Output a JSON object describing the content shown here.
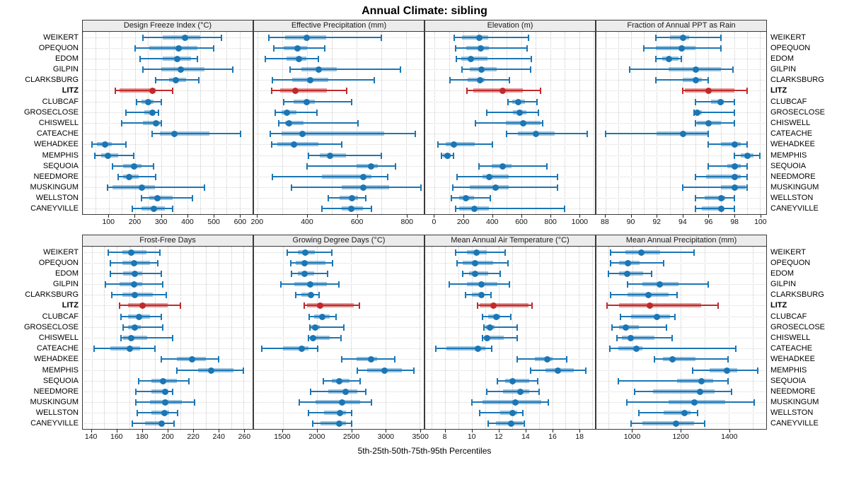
{
  "title": "Annual Climate: sibling",
  "footer": "5th-25th-50th-75th-95th Percentiles",
  "highlight_site": "LITZ",
  "colors": {
    "series_blue": "#1b76b5",
    "series_blue_box": "rgba(31,119,180,0.45)",
    "highlight_red": "#c22a2a",
    "highlight_red_box": "rgba(194,42,42,0.5)",
    "header_bg": "#ececec",
    "grid": "#c9c9c9"
  },
  "chart_data": {
    "type": "percentile-dotplot",
    "note": "Each row shows 5th-25th-50th-75th-95th percentiles (whisker = 5-95, thick bar = 25-75, dot = median)",
    "sites": [
      "WEIKERT",
      "OPEQUON",
      "EDOM",
      "GILPIN",
      "CLARKSBURG",
      "LITZ",
      "CLUBCAF",
      "GROSECLOSE",
      "CHISWELL",
      "CATEACHE",
      "WEHADKEE",
      "MEMPHIS",
      "SEQUOIA",
      "NEEDMORE",
      "MUSKINGUM",
      "WELLSTON",
      "CANEYVILLE"
    ],
    "panels": [
      {
        "title": "Design Freeze Index (°C)",
        "min": 0,
        "max": 650,
        "ticks": [
          100,
          200,
          300,
          400,
          500,
          600
        ],
        "minor_step": 50,
        "values": [
          [
            230,
            305,
            390,
            450,
            530
          ],
          [
            200,
            255,
            365,
            440,
            500
          ],
          [
            220,
            305,
            360,
            415,
            440
          ],
          [
            230,
            300,
            375,
            465,
            575
          ],
          [
            280,
            330,
            355,
            395,
            445
          ],
          [
            125,
            140,
            265,
            280,
            345
          ],
          [
            205,
            225,
            250,
            270,
            300
          ],
          [
            165,
            235,
            265,
            275,
            290
          ],
          [
            150,
            230,
            280,
            295,
            300
          ],
          [
            265,
            295,
            350,
            485,
            605
          ],
          [
            35,
            55,
            85,
            110,
            165
          ],
          [
            45,
            70,
            95,
            135,
            195
          ],
          [
            115,
            155,
            195,
            225,
            270
          ],
          [
            135,
            155,
            175,
            215,
            280
          ],
          [
            95,
            115,
            225,
            275,
            465
          ],
          [
            225,
            255,
            285,
            345,
            420
          ],
          [
            190,
            225,
            270,
            315,
            345
          ]
        ]
      },
      {
        "title": "Effective Precipitation (mm)",
        "min": 185,
        "max": 870,
        "ticks": [
          200,
          400,
          600,
          800
        ],
        "minor_step": 100,
        "values": [
          [
            245,
            310,
            395,
            475,
            700
          ],
          [
            265,
            305,
            360,
            400,
            470
          ],
          [
            230,
            315,
            365,
            395,
            445
          ],
          [
            330,
            375,
            445,
            520,
            775
          ],
          [
            260,
            340,
            410,
            485,
            670
          ],
          [
            255,
            290,
            350,
            480,
            560
          ],
          [
            305,
            345,
            395,
            430,
            580
          ],
          [
            270,
            295,
            315,
            355,
            440
          ],
          [
            285,
            310,
            325,
            385,
            605
          ],
          [
            250,
            295,
            380,
            710,
            835
          ],
          [
            255,
            280,
            345,
            445,
            540
          ],
          [
            405,
            450,
            490,
            555,
            700
          ],
          [
            400,
            600,
            655,
            685,
            755
          ],
          [
            260,
            460,
            625,
            660,
            725
          ],
          [
            335,
            540,
            625,
            730,
            860
          ],
          [
            485,
            530,
            580,
            605,
            635
          ],
          [
            460,
            540,
            575,
            625,
            660
          ]
        ]
      },
      {
        "title": "Elevation (m)",
        "min": -65,
        "max": 1110,
        "ticks": [
          0,
          200,
          400,
          600,
          800,
          1000
        ],
        "minor_step": 100,
        "values": [
          [
            135,
            190,
            305,
            370,
            650
          ],
          [
            145,
            220,
            315,
            375,
            640
          ],
          [
            150,
            185,
            250,
            365,
            670
          ],
          [
            190,
            245,
            320,
            430,
            665
          ],
          [
            105,
            230,
            310,
            345,
            520
          ],
          [
            225,
            270,
            470,
            610,
            735
          ],
          [
            510,
            535,
            575,
            625,
            710
          ],
          [
            360,
            540,
            585,
            635,
            720
          ],
          [
            285,
            495,
            610,
            735,
            750
          ],
          [
            500,
            575,
            700,
            830,
            1055
          ],
          [
            25,
            75,
            130,
            280,
            400
          ],
          [
            50,
            55,
            85,
            110,
            130
          ],
          [
            305,
            395,
            470,
            530,
            775
          ],
          [
            155,
            330,
            375,
            515,
            850
          ],
          [
            125,
            245,
            420,
            515,
            850
          ],
          [
            115,
            170,
            215,
            275,
            385
          ],
          [
            145,
            170,
            275,
            375,
            900
          ]
        ]
      },
      {
        "title": "Fraction of Annual PPT as Rain",
        "min": 87.3,
        "max": 100.5,
        "ticks": [
          88,
          90,
          92,
          94,
          96,
          98,
          100
        ],
        "minor_step": 1,
        "values": [
          [
            91.9,
            93,
            94,
            94.5,
            97
          ],
          [
            91,
            91.9,
            93.9,
            95,
            97
          ],
          [
            91.9,
            92.4,
            92.9,
            93.7,
            93.9
          ],
          [
            89.9,
            92.9,
            95,
            97,
            97.9
          ],
          [
            91.9,
            94,
            95,
            95.5,
            96
          ],
          [
            94,
            94.2,
            96,
            98,
            99
          ],
          [
            95,
            96.2,
            96.9,
            97.2,
            98
          ],
          [
            94.9,
            95,
            95.1,
            95.5,
            98
          ],
          [
            95,
            95.1,
            96,
            97,
            98
          ],
          [
            88,
            92,
            94,
            96,
            96
          ],
          [
            96,
            97,
            98,
            98.5,
            99
          ],
          [
            98,
            98.5,
            99,
            99.5,
            100
          ],
          [
            96,
            97.5,
            98,
            98.5,
            99
          ],
          [
            95,
            95.8,
            98,
            98.5,
            99
          ],
          [
            94,
            97,
            98,
            98.9,
            99
          ],
          [
            95,
            95.7,
            97,
            97.3,
            98
          ],
          [
            95,
            95.5,
            97,
            97.2,
            98
          ]
        ]
      },
      {
        "title": "Frost-Free Days",
        "min": 133,
        "max": 267,
        "ticks": [
          140,
          160,
          180,
          200,
          220,
          240,
          260
        ],
        "minor_step": 10,
        "values": [
          [
            153,
            164,
            171,
            183,
            194
          ],
          [
            155,
            164,
            173,
            186,
            192
          ],
          [
            155,
            165,
            174,
            180,
            195
          ],
          [
            151,
            162,
            173,
            180,
            196
          ],
          [
            156,
            164,
            174,
            188,
            199
          ],
          [
            162,
            169,
            180,
            200,
            210
          ],
          [
            163,
            169,
            177,
            186,
            195
          ],
          [
            165,
            169,
            174,
            179,
            196
          ],
          [
            163,
            165,
            171,
            184,
            204
          ],
          [
            142,
            155,
            170,
            178,
            190
          ],
          [
            195,
            207,
            219,
            230,
            240
          ],
          [
            207,
            224,
            234,
            252,
            260
          ],
          [
            177,
            187,
            196,
            207,
            217
          ],
          [
            175,
            187,
            198,
            200,
            204
          ],
          [
            175,
            186,
            198,
            211,
            221
          ],
          [
            176,
            187,
            197,
            201,
            208
          ],
          [
            172,
            182,
            195,
            197,
            205
          ]
        ]
      },
      {
        "title": "Growing Degree Days (°C)",
        "min": 1080,
        "max": 3560,
        "ticks": [
          1500,
          2000,
          2500,
          3000,
          3500
        ],
        "minor_step": 500,
        "values": [
          [
            1570,
            1720,
            1820,
            1970,
            2220
          ],
          [
            1615,
            1690,
            1815,
            2120,
            2225
          ],
          [
            1630,
            1725,
            1810,
            1955,
            2150
          ],
          [
            1470,
            1670,
            1895,
            2140,
            2315
          ],
          [
            1685,
            1775,
            1905,
            1940,
            2030
          ],
          [
            1810,
            1860,
            2045,
            2535,
            2620
          ],
          [
            1890,
            1955,
            2075,
            2190,
            2275
          ],
          [
            1895,
            1905,
            1965,
            2045,
            2390
          ],
          [
            1880,
            1895,
            1940,
            2190,
            2355
          ],
          [
            1190,
            1505,
            1770,
            1880,
            2010
          ],
          [
            2365,
            2575,
            2790,
            2880,
            3140
          ],
          [
            2585,
            2735,
            2980,
            3235,
            3420
          ],
          [
            2095,
            2215,
            2315,
            2480,
            2635
          ],
          [
            1910,
            2165,
            2410,
            2585,
            2715
          ],
          [
            1740,
            1980,
            2365,
            2630,
            2795
          ],
          [
            1880,
            2105,
            2330,
            2425,
            2505
          ],
          [
            1935,
            2050,
            2315,
            2425,
            2505
          ]
        ]
      },
      {
        "title": "Mean Annual Air Temperature (°C)",
        "min": 6.5,
        "max": 19.2,
        "ticks": [
          8,
          10,
          12,
          14,
          16,
          18
        ],
        "minor_step": 1,
        "values": [
          [
            8.8,
            9.6,
            10.3,
            11.1,
            12.5
          ],
          [
            8.9,
            9.3,
            10.2,
            11.6,
            12.7
          ],
          [
            9.3,
            9.8,
            10.2,
            11.2,
            12.1
          ],
          [
            8.3,
            9.6,
            10.7,
            11.9,
            12.8
          ],
          [
            9.5,
            10,
            10.7,
            10.9,
            11.4
          ],
          [
            10.4,
            10.6,
            11.6,
            14.2,
            14.5
          ],
          [
            10.8,
            11.2,
            11.8,
            12.1,
            12.9
          ],
          [
            10.9,
            11,
            11.3,
            11.7,
            13.4
          ],
          [
            10.8,
            10.9,
            11.1,
            12.4,
            13.4
          ],
          [
            7.3,
            8.1,
            10.4,
            11,
            11.5
          ],
          [
            13.4,
            14.7,
            15.6,
            16,
            17.1
          ],
          [
            14.4,
            15.5,
            16.4,
            17.6,
            18.5
          ],
          [
            11.9,
            12.5,
            13,
            14.3,
            14.9
          ],
          [
            11.1,
            12.3,
            13.6,
            14.3,
            15
          ],
          [
            10,
            10.8,
            13.2,
            15.2,
            15.7
          ],
          [
            10.6,
            12.1,
            13,
            13.4,
            13.8
          ],
          [
            11.2,
            11.8,
            12.9,
            13.8,
            13.9
          ]
        ]
      },
      {
        "title": "Mean Annual Precipitation (mm)",
        "min": 850,
        "max": 1555,
        "ticks": [
          1000,
          1200,
          1400
        ],
        "minor_step": 100,
        "values": [
          [
            910,
            970,
            1035,
            1115,
            1255
          ],
          [
            910,
            945,
            980,
            1030,
            1130
          ],
          [
            900,
            945,
            975,
            1045,
            1080
          ],
          [
            980,
            1040,
            1110,
            1190,
            1315
          ],
          [
            910,
            980,
            1065,
            1150,
            1185
          ],
          [
            895,
            945,
            1070,
            1285,
            1355
          ],
          [
            950,
            995,
            1100,
            1155,
            1175
          ],
          [
            915,
            945,
            970,
            1025,
            1140
          ],
          [
            935,
            955,
            990,
            1090,
            1165
          ],
          [
            905,
            940,
            1015,
            1040,
            1430
          ],
          [
            1090,
            1125,
            1165,
            1260,
            1395
          ],
          [
            1250,
            1320,
            1390,
            1435,
            1520
          ],
          [
            940,
            1185,
            1285,
            1335,
            1395
          ],
          [
            1010,
            1085,
            1280,
            1340,
            1410
          ],
          [
            975,
            1150,
            1255,
            1385,
            1505
          ],
          [
            1025,
            1130,
            1215,
            1240,
            1270
          ],
          [
            995,
            1040,
            1180,
            1255,
            1300
          ]
        ]
      }
    ]
  }
}
